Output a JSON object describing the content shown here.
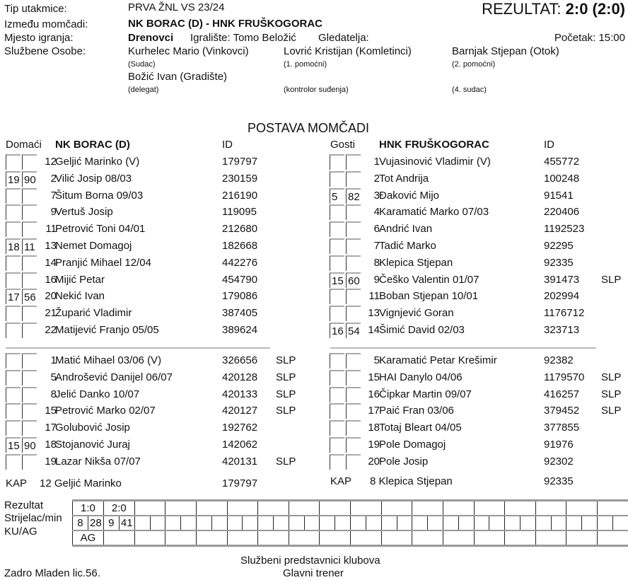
{
  "header": {
    "tip_label": "Tip utakmice:",
    "tip": "PRVA ŽNL VS 23/24",
    "result_label": "REZULTAT:",
    "result": "2:0 (2:0)",
    "izmedu_label": "Između momčadi:",
    "match": "NK BORAC (D) - HNK FRUŠKOGORAC",
    "mjesto_label": "Mjesto igranja:",
    "mjesto": "Drenovci",
    "igraliste": "Igralište: Tomo Beložić",
    "gledatelja": "Gledatelja:",
    "pocetak": "Početak: 15:00",
    "sluzbene_label": "Službene Osobe:",
    "officials": [
      {
        "name": "Kurhelec Mario (Vinkovci)",
        "role": "(Sudac)"
      },
      {
        "name": "Lovrić Kristijan (Komletinci)",
        "role": "(1. pomoćni)"
      },
      {
        "name": "Barnjak Stjepan (Otok)",
        "role": "(2. pomoćni)"
      },
      {
        "name": "Božić Ivan (Gradište)",
        "role": "(delegat)"
      },
      {
        "name": "",
        "role": "(kontrolor suđenja)"
      },
      {
        "name": "",
        "role": "(4. sudac)"
      }
    ]
  },
  "postava_title": "POSTAVA MOMČADI",
  "home": {
    "label": "Domaći",
    "team": "NK BORAC (D)",
    "id_label": "ID",
    "starters": [
      [
        "",
        "",
        "12",
        "Geljić Marinko   (V)",
        "179797",
        ""
      ],
      [
        "19",
        "90",
        "2",
        "Vilić Josip  08/03",
        "230159",
        ""
      ],
      [
        "",
        "",
        "7",
        "Šitum Borna  09/03",
        "216190",
        ""
      ],
      [
        "",
        "",
        "9",
        "Vertuš Josip",
        "119095",
        ""
      ],
      [
        "",
        "",
        "11",
        "Petrović Toni  04/01",
        "212680",
        ""
      ],
      [
        "18",
        "11",
        "13",
        "Nemet Domagoj",
        "182668",
        ""
      ],
      [
        "",
        "",
        "14",
        "Pranjić Mihael  12/04",
        "442276",
        ""
      ],
      [
        "",
        "",
        "16",
        "Mijić Petar",
        "454790",
        ""
      ],
      [
        "17",
        "56",
        "20",
        "Nekić Ivan",
        "179086",
        ""
      ],
      [
        "",
        "",
        "21",
        "Župarić Vladimir",
        "387405",
        ""
      ],
      [
        "",
        "",
        "22",
        "Matijević Franjo  05/05",
        "389624",
        ""
      ]
    ],
    "subs": [
      [
        "",
        "",
        "1",
        "Matić Mihael  03/06  (V)",
        "326656",
        "SLP"
      ],
      [
        "",
        "",
        "5",
        "Androšević Danijel  06/07",
        "420128",
        "SLP"
      ],
      [
        "",
        "",
        "8",
        "Jelić Danko  10/07",
        "420133",
        "SLP"
      ],
      [
        "",
        "",
        "15",
        "Petrović Marko  02/07",
        "420127",
        "SLP"
      ],
      [
        "",
        "",
        "17",
        "Golubović Josip",
        "192762",
        ""
      ],
      [
        "15",
        "90",
        "18",
        "Stojanović Juraj",
        "142062",
        ""
      ],
      [
        "",
        "",
        "19",
        "Lazar Nikša  07/07",
        "420131",
        "SLP"
      ]
    ],
    "kap_label": "KAP",
    "kap_num": "12",
    "kap_name": "Geljić Marinko",
    "kap_id": "179797"
  },
  "away": {
    "label": "Gosti",
    "team": "HNK FRUŠKOGORAC",
    "id_label": "ID",
    "starters": [
      [
        "",
        "",
        "1",
        "Vujasinović Vladimir   (V)",
        "455772",
        ""
      ],
      [
        "",
        "",
        "2",
        "Tot Andrija",
        "100248",
        ""
      ],
      [
        "5",
        "82",
        "3",
        "Đaković Mijo",
        "91541",
        ""
      ],
      [
        "",
        "",
        "4",
        "Karamatić Marko  07/03",
        "220406",
        ""
      ],
      [
        "",
        "",
        "6",
        "Andrić Ivan",
        "1192523",
        ""
      ],
      [
        "",
        "",
        "7",
        "Tadić Marko",
        "92295",
        ""
      ],
      [
        "",
        "",
        "8",
        "Klepica Stjepan",
        "92335",
        ""
      ],
      [
        "15",
        "60",
        "9",
        "Češko Valentin  01/07",
        "391473",
        "SLP"
      ],
      [
        "",
        "",
        "11",
        "Boban Stjepan  10/01",
        "202994",
        ""
      ],
      [
        "",
        "",
        "13",
        "Vignjević Goran",
        "1176712",
        ""
      ],
      [
        "16",
        "54",
        "14",
        "Šimić David  02/03",
        "323713",
        ""
      ]
    ],
    "subs": [
      [
        "",
        "",
        "5",
        "Karamatić Petar Krešimir",
        "92382",
        ""
      ],
      [
        "",
        "",
        "15",
        "HAI Danylo  04/06",
        "1179570",
        "SLP"
      ],
      [
        "",
        "",
        "16",
        "Čipkar Martin  09/07",
        "416257",
        "SLP"
      ],
      [
        "",
        "",
        "17",
        "Paić Fran  03/06",
        "379452",
        "SLP"
      ],
      [
        "",
        "",
        "18",
        "Totaj Bleart  04/05",
        "377855",
        ""
      ],
      [
        "",
        "",
        "19",
        "Pole Domagoj",
        "91976",
        ""
      ],
      [
        "",
        "",
        "20",
        "Pole Josip",
        "92302",
        ""
      ]
    ],
    "kap_label": "KAP",
    "kap_num": "8",
    "kap_name": "Klepica Stjepan",
    "kap_id": "92335"
  },
  "results": {
    "rezultat_label": "Rezultat",
    "strijelac_label": "Strijelac/min",
    "kuag_label": "KU/AG",
    "rezultat": [
      "1:0",
      "2:0"
    ],
    "strijelac": [
      [
        "8",
        "28"
      ],
      [
        "9",
        "41"
      ]
    ],
    "kuag": [
      "AG"
    ]
  },
  "footer": {
    "predstavnici": "Službeni predstavnici klubova",
    "trener": "Glavni trener",
    "signer": "Zadro Mladen lic.56."
  }
}
